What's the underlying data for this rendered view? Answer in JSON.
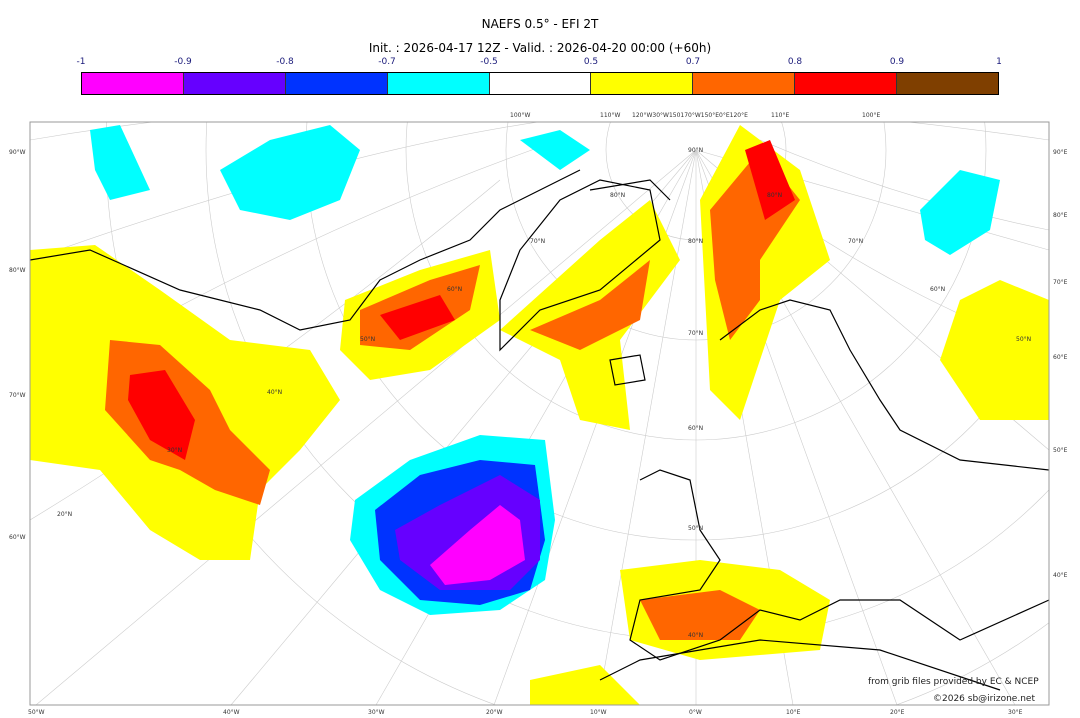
{
  "title": "NAEFS 0.5° - EFI 2T",
  "subtitle": "Init. : 2026-04-17 12Z - Valid. : 2026-04-20 00:00 (+60h)",
  "colorbar": {
    "ticks": [
      "-1",
      "-0.9",
      "-0.8",
      "-0.7",
      "-0.5",
      "0.5",
      "0.7",
      "0.8",
      "0.9",
      "1"
    ],
    "colors": [
      "#ff00ff",
      "#6600ff",
      "#0033ff",
      "#00ffff",
      "#ffffff",
      "#ffff00",
      "#ff6600",
      "#ff0000",
      "#7f3f00"
    ]
  },
  "axes": {
    "left": [
      "90°W",
      "80°W",
      "70°W",
      "60°W"
    ],
    "right": [
      "90°E",
      "80°E",
      "70°E",
      "60°E",
      "50°E",
      "40°E"
    ],
    "bottom": [
      "50°W",
      "40°W",
      "30°W",
      "20°W",
      "10°W",
      "0°W",
      "10°E",
      "20°E",
      "30°E"
    ],
    "top": [
      "100°W",
      "110°W",
      "120°W30°W150170°W150°E0°E120°E",
      "110°E",
      "100°E"
    ],
    "inner": [
      "90°N",
      "80°N",
      "80°N",
      "80°N",
      "70°N",
      "70°N",
      "70°N",
      "60°N",
      "60°N",
      "60°N",
      "50°N",
      "50°N",
      "50°N",
      "40°N",
      "40°N",
      "30°N",
      "20°N"
    ]
  },
  "credits": {
    "source": "from grib files provided by EC & NCEP",
    "copyright": "©2026 sb@irizone.net"
  }
}
